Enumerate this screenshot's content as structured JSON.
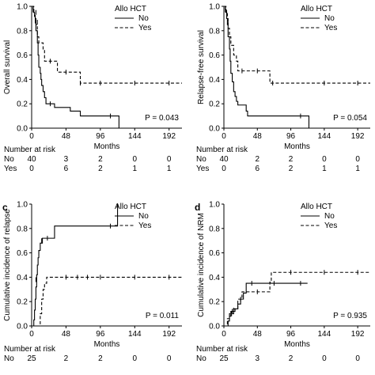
{
  "panels": [
    {
      "letter": "",
      "chart_data": {
        "type": "line",
        "xlabel": "Months",
        "ylabel": "Overall survival",
        "xlim": [
          0,
          210
        ],
        "ylim": [
          0,
          1.0
        ],
        "xticks": [
          0,
          48,
          96,
          144,
          192
        ],
        "yticks": [
          0.0,
          0.2,
          0.4,
          0.6,
          0.8,
          1.0
        ],
        "legend": {
          "title": "Allo HCT",
          "position": "top-right",
          "entries": [
            "No",
            "Yes"
          ]
        },
        "pvalue": "P = 0.043",
        "series": [
          {
            "name": "No",
            "style": "solid",
            "points": [
              [
                0,
                1.0
              ],
              [
                2,
                0.975
              ],
              [
                3,
                0.95
              ],
              [
                4,
                0.925
              ],
              [
                5,
                0.9
              ],
              [
                6,
                0.8
              ],
              [
                8,
                0.7
              ],
              [
                9,
                0.6
              ],
              [
                10,
                0.5
              ],
              [
                12,
                0.45
              ],
              [
                13,
                0.4
              ],
              [
                14,
                0.35
              ],
              [
                16,
                0.3
              ],
              [
                18,
                0.25
              ],
              [
                20,
                0.2
              ],
              [
                30,
                0.2
              ],
              [
                32,
                0.17
              ],
              [
                52,
                0.17
              ],
              [
                54,
                0.14
              ],
              [
                66,
                0.14
              ],
              [
                68,
                0.1
              ],
              [
                122,
                0.1
              ],
              [
                122,
                0.0
              ]
            ],
            "censored": [
              [
                6,
                0.95
              ],
              [
                8,
                0.87
              ],
              [
                26,
                0.2
              ],
              [
                110,
                0.1
              ]
            ]
          },
          {
            "name": "Yes",
            "style": "dashed",
            "points": [
              [
                0,
                1.0
              ],
              [
                3,
                0.95
              ],
              [
                4,
                0.9
              ],
              [
                6,
                0.85
              ],
              [
                8,
                0.75
              ],
              [
                10,
                0.7
              ],
              [
                16,
                0.65
              ],
              [
                18,
                0.55
              ],
              [
                34,
                0.55
              ],
              [
                36,
                0.46
              ],
              [
                66,
                0.46
              ],
              [
                68,
                0.37
              ],
              [
                210,
                0.37
              ]
            ],
            "censored": [
              [
                2,
                0.97
              ],
              [
                5,
                0.88
              ],
              [
                26,
                0.55
              ],
              [
                48,
                0.46
              ],
              [
                68,
                0.37
              ],
              [
                96,
                0.37
              ],
              [
                144,
                0.37
              ],
              [
                192,
                0.37
              ]
            ]
          }
        ],
        "risk_table": {
          "header": "Number at risk",
          "rows": [
            {
              "label": "No",
              "values": [
                "40",
                "3",
                "2",
                "0",
                "0"
              ]
            },
            {
              "label": "Yes",
              "values": [
                "0",
                "6",
                "2",
                "1",
                "1"
              ]
            }
          ]
        }
      }
    },
    {
      "letter": "",
      "chart_data": {
        "type": "line",
        "xlabel": "Months",
        "ylabel": "Relapse-free survival",
        "xlim": [
          0,
          210
        ],
        "ylim": [
          0,
          1.0
        ],
        "xticks": [
          0,
          48,
          96,
          144,
          192
        ],
        "yticks": [
          0.0,
          0.2,
          0.4,
          0.6,
          0.8,
          1.0
        ],
        "legend": {
          "title": "Allo HCT",
          "position": "top-right",
          "entries": [
            "No",
            "Yes"
          ]
        },
        "pvalue": "P = 0.054",
        "series": [
          {
            "name": "No",
            "style": "solid",
            "points": [
              [
                0,
                1.0
              ],
              [
                2,
                0.975
              ],
              [
                3,
                0.95
              ],
              [
                4,
                0.9
              ],
              [
                5,
                0.85
              ],
              [
                6,
                0.75
              ],
              [
                8,
                0.65
              ],
              [
                9,
                0.55
              ],
              [
                10,
                0.45
              ],
              [
                12,
                0.38
              ],
              [
                14,
                0.3
              ],
              [
                16,
                0.26
              ],
              [
                18,
                0.22
              ],
              [
                20,
                0.19
              ],
              [
                30,
                0.19
              ],
              [
                32,
                0.14
              ],
              [
                34,
                0.1
              ],
              [
                122,
                0.1
              ],
              [
                122,
                0.0
              ]
            ],
            "censored": [
              [
                4,
                0.95
              ],
              [
                6,
                0.87
              ],
              [
                110,
                0.1
              ]
            ]
          },
          {
            "name": "Yes",
            "style": "dashed",
            "points": [
              [
                0,
                1.0
              ],
              [
                3,
                0.95
              ],
              [
                5,
                0.9
              ],
              [
                6,
                0.82
              ],
              [
                8,
                0.75
              ],
              [
                10,
                0.68
              ],
              [
                14,
                0.6
              ],
              [
                18,
                0.55
              ],
              [
                20,
                0.47
              ],
              [
                64,
                0.47
              ],
              [
                66,
                0.37
              ],
              [
                210,
                0.37
              ]
            ],
            "censored": [
              [
                2,
                0.97
              ],
              [
                26,
                0.47
              ],
              [
                48,
                0.47
              ],
              [
                70,
                0.37
              ],
              [
                144,
                0.37
              ],
              [
                192,
                0.37
              ]
            ]
          }
        ],
        "risk_table": {
          "header": "Number at risk",
          "rows": [
            {
              "label": "No",
              "values": [
                "40",
                "2",
                "2",
                "0",
                "0"
              ]
            },
            {
              "label": "Yes",
              "values": [
                "0",
                "6",
                "2",
                "1",
                "1"
              ]
            }
          ]
        }
      }
    },
    {
      "letter": "c",
      "chart_data": {
        "type": "line",
        "xlabel": "Months",
        "ylabel": "Cumulative incidence of relapse",
        "xlim": [
          0,
          210
        ],
        "ylim": [
          0,
          1.0
        ],
        "xticks": [
          0,
          48,
          96,
          144,
          192
        ],
        "yticks": [
          0.0,
          0.2,
          0.4,
          0.6,
          0.8,
          1.0
        ],
        "legend": {
          "title": "Allo HCT",
          "position": "top-right",
          "entries": [
            "No",
            "Yes"
          ]
        },
        "pvalue": "P = 0.011",
        "series": [
          {
            "name": "No",
            "style": "solid",
            "points": [
              [
                0,
                0.0
              ],
              [
                3,
                0.05
              ],
              [
                4,
                0.13
              ],
              [
                5,
                0.22
              ],
              [
                6,
                0.32
              ],
              [
                7,
                0.42
              ],
              [
                8,
                0.5
              ],
              [
                9,
                0.56
              ],
              [
                10,
                0.62
              ],
              [
                12,
                0.68
              ],
              [
                15,
                0.72
              ],
              [
                30,
                0.72
              ],
              [
                32,
                0.82
              ],
              [
                120,
                0.82
              ],
              [
                120,
                1.0
              ]
            ],
            "censored": [
              [
                6,
                0.38
              ],
              [
                10,
                0.6
              ],
              [
                14,
                0.7
              ],
              [
                22,
                0.72
              ],
              [
                110,
                0.82
              ]
            ]
          },
          {
            "name": "Yes",
            "style": "dashed",
            "points": [
              [
                0,
                0.0
              ],
              [
                10,
                0.0
              ],
              [
                12,
                0.1
              ],
              [
                14,
                0.22
              ],
              [
                16,
                0.3
              ],
              [
                18,
                0.35
              ],
              [
                21,
                0.4
              ],
              [
                210,
                0.4
              ]
            ],
            "censored": [
              [
                48,
                0.4
              ],
              [
                64,
                0.4
              ],
              [
                78,
                0.4
              ],
              [
                96,
                0.4
              ],
              [
                144,
                0.4
              ],
              [
                192,
                0.4
              ]
            ]
          }
        ],
        "risk_table": {
          "header": "Number at risk",
          "rows": [
            {
              "label": "No",
              "values": [
                "25",
                "2",
                "2",
                "0",
                "0"
              ]
            }
          ]
        }
      }
    },
    {
      "letter": "d",
      "chart_data": {
        "type": "line",
        "xlabel": "Months",
        "ylabel": "Cumulative incidence of NRM",
        "xlim": [
          0,
          210
        ],
        "ylim": [
          0,
          1.0
        ],
        "xticks": [
          0,
          48,
          96,
          144,
          192
        ],
        "yticks": [
          0.0,
          0.2,
          0.4,
          0.6,
          0.8,
          1.0
        ],
        "legend": {
          "title": "Allo HCT",
          "position": "top-right",
          "entries": [
            "No",
            "Yes"
          ]
        },
        "pvalue": "P = 0.935",
        "series": [
          {
            "name": "No",
            "style": "solid",
            "points": [
              [
                0,
                0.0
              ],
              [
                6,
                0.04
              ],
              [
                8,
                0.08
              ],
              [
                10,
                0.12
              ],
              [
                16,
                0.14
              ],
              [
                20,
                0.18
              ],
              [
                24,
                0.22
              ],
              [
                28,
                0.27
              ],
              [
                32,
                0.35
              ],
              [
                120,
                0.35
              ]
            ],
            "censored": [
              [
                12,
                0.12
              ],
              [
                14,
                0.13
              ],
              [
                40,
                0.35
              ],
              [
                72,
                0.35
              ],
              [
                110,
                0.35
              ]
            ]
          },
          {
            "name": "Yes",
            "style": "dashed",
            "points": [
              [
                0,
                0.0
              ],
              [
                5,
                0.06
              ],
              [
                8,
                0.1
              ],
              [
                14,
                0.14
              ],
              [
                20,
                0.22
              ],
              [
                26,
                0.28
              ],
              [
                64,
                0.28
              ],
              [
                66,
                0.36
              ],
              [
                68,
                0.44
              ],
              [
                210,
                0.44
              ]
            ],
            "censored": [
              [
                11,
                0.1
              ],
              [
                24,
                0.22
              ],
              [
                48,
                0.28
              ],
              [
                96,
                0.44
              ],
              [
                144,
                0.44
              ],
              [
                192,
                0.44
              ]
            ]
          }
        ],
        "risk_table": {
          "header": "Number at risk",
          "rows": [
            {
              "label": "No",
              "values": [
                "25",
                "3",
                "2",
                "0",
                "0"
              ]
            }
          ]
        }
      }
    }
  ]
}
